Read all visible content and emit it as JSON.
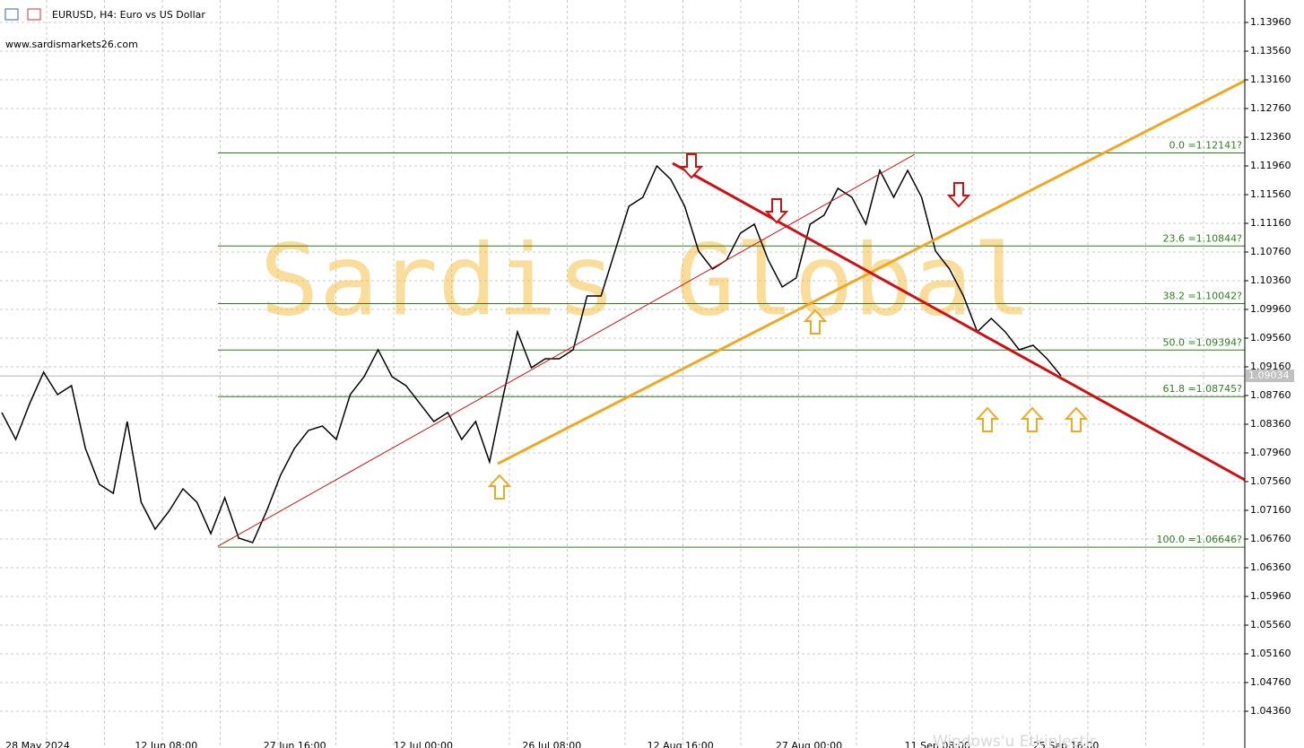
{
  "chart_data": {
    "type": "line",
    "title": "EURUSD, H4:  Euro vs US Dollar",
    "subtitle": "www.sardismarkets26.com",
    "watermark": "Sardis Global",
    "footer_note": "Windows'u Etkinleştir",
    "current_price": {
      "value": 1.09034,
      "label": "1.09034"
    },
    "xtick_labels": [
      "28 May 2024",
      "12 Jun 08:00",
      "27 Jun 16:00",
      "12 Jul 00:00",
      "26 Jul 08:00",
      "12 Aug 16:00",
      "27 Aug 00:00",
      "11 Sep 08:00",
      "25 Sep 16:00"
    ],
    "series": [
      {
        "name": "EURUSD",
        "color": "#000000",
        "values": [
          1.08523,
          1.08148,
          1.08648,
          1.09085,
          1.08773,
          1.08898,
          1.08023,
          1.07523,
          1.07398,
          1.08398,
          1.07273,
          1.06898,
          1.07148,
          1.0746,
          1.07273,
          1.06835,
          1.07335,
          1.06773,
          1.0671,
          1.07148,
          1.07648,
          1.08023,
          1.08273,
          1.08335,
          1.08148,
          1.08773,
          1.09023,
          1.09398,
          1.09023,
          1.08898,
          1.08648,
          1.08398,
          1.08523,
          1.08148,
          1.08398,
          1.07835,
          1.08773,
          1.09648,
          1.09148,
          1.09273,
          1.09273,
          1.09398,
          1.10148,
          1.10148,
          1.10773,
          1.11398,
          1.11523,
          1.1196,
          1.11773,
          1.11398,
          1.10773,
          1.10523,
          1.10648,
          1.11023,
          1.11148,
          1.10648,
          1.10273,
          1.10398,
          1.11148,
          1.11273,
          1.11648,
          1.11523,
          1.11148,
          1.11898,
          1.11523,
          1.11898,
          1.11523,
          1.10773,
          1.10523,
          1.10148,
          1.09648,
          1.09835,
          1.09648,
          1.09398,
          1.0946,
          1.09273,
          1.09035
        ]
      }
    ],
    "fib_levels": [
      {
        "value": 1.12141,
        "label": "0.0 =1.12141?"
      },
      {
        "value": 1.10844,
        "label": "23.6 =1.10844?"
      },
      {
        "value": 1.10042,
        "label": "38.2 =1.10042?"
      },
      {
        "value": 1.09394,
        "label": "50.0 =1.09394?"
      },
      {
        "value": 1.08745,
        "label": "61.8 =1.08745?"
      },
      {
        "value": 1.06646,
        "label": "100.0 =1.06646?"
      }
    ],
    "fib_color": "#2f7d1f",
    "ylim": [
      1.0396,
      1.142725
    ],
    "yticks": [
      {
        "value": 1.1396,
        "label": "1.13960"
      },
      {
        "value": 1.1356,
        "label": "1.13560"
      },
      {
        "value": 1.1316,
        "label": "1.13160"
      },
      {
        "value": 1.1276,
        "label": "1.12760"
      },
      {
        "value": 1.1236,
        "label": "1.12360"
      },
      {
        "value": 1.1196,
        "label": "1.11960"
      },
      {
        "value": 1.1156,
        "label": "1.11560"
      },
      {
        "value": 1.1116,
        "label": "1.11160"
      },
      {
        "value": 1.1076,
        "label": "1.10760"
      },
      {
        "value": 1.1036,
        "label": "1.10360"
      },
      {
        "value": 1.0996,
        "label": "1.09960"
      },
      {
        "value": 1.0956,
        "label": "1.09560"
      },
      {
        "value": 1.0916,
        "label": "1.09160"
      },
      {
        "value": 1.0876,
        "label": "1.08760"
      },
      {
        "value": 1.0836,
        "label": "1.08360"
      },
      {
        "value": 1.0796,
        "label": "1.07960"
      },
      {
        "value": 1.0756,
        "label": "1.07560"
      },
      {
        "value": 1.0716,
        "label": "1.07160"
      },
      {
        "value": 1.0676,
        "label": "1.06760"
      },
      {
        "value": 1.0636,
        "label": "1.06360"
      },
      {
        "value": 1.0596,
        "label": "1.05960"
      },
      {
        "value": 1.0556,
        "label": "1.05560"
      },
      {
        "value": 1.0516,
        "label": "1.05160"
      },
      {
        "value": 1.0476,
        "label": "1.04760"
      },
      {
        "value": 1.0436,
        "label": "1.04360"
      }
    ],
    "grid": true
  }
}
